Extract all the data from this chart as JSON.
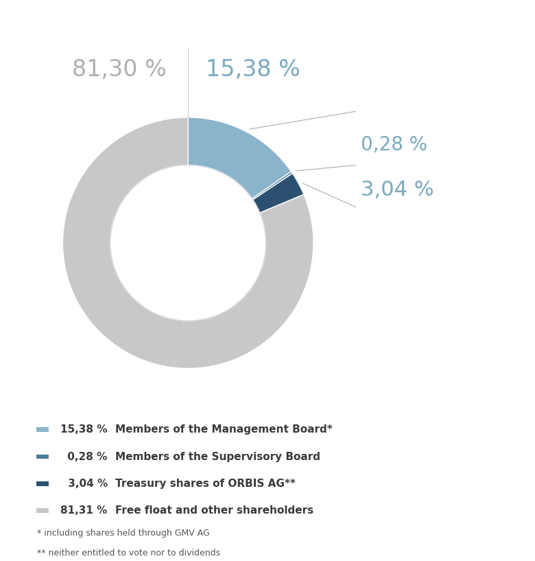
{
  "slices": [
    15.38,
    0.28,
    3.04,
    81.3
  ],
  "colors": [
    "#8ab4cc",
    "#4d7a99",
    "#2c5070",
    "#c8c8c8"
  ],
  "legend_percentages": [
    "15,38 %",
    " 0,28 %",
    " 3,04 %",
    "81,31 %"
  ],
  "legend_labels": [
    "Members of the Management Board*",
    "Members of the Supervisory Board",
    "Treasury shares of ORBIS AG**",
    "Free float and other shareholders"
  ],
  "note1": "  * including shares held through GMV AG",
  "note2": "  ** neither entitled to vote nor to dividends",
  "color_gray_label": "#b0b0b0",
  "color_blue_label": "#7aaabf",
  "color_line": "#c0c0c0",
  "bg_color": "#ffffff"
}
